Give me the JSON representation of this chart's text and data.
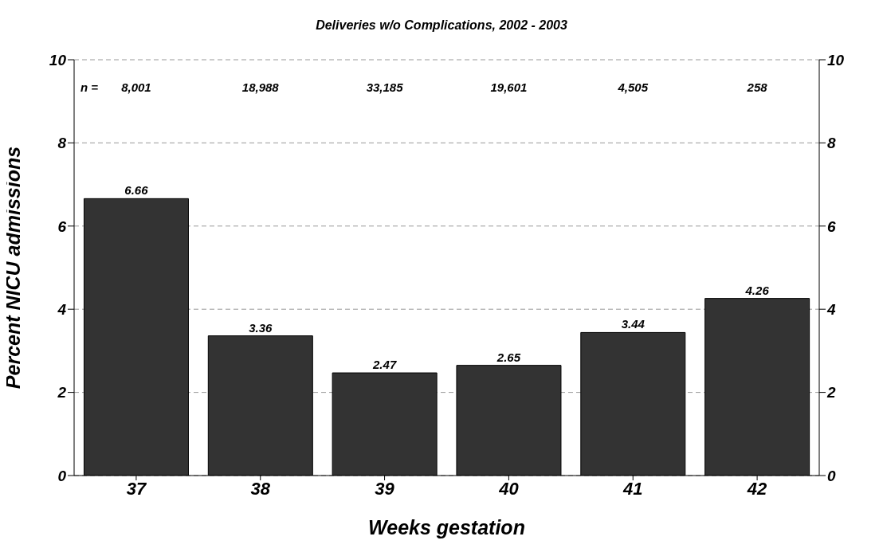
{
  "chart_data": {
    "type": "bar",
    "title": "Deliveries w/o Complications, 2002 - 2003",
    "xlabel": "Weeks gestation",
    "ylabel": "Percent NICU admissions",
    "categories": [
      "37",
      "38",
      "39",
      "40",
      "41",
      "42"
    ],
    "values": [
      6.66,
      3.36,
      2.47,
      2.65,
      3.44,
      4.26
    ],
    "color": "#333333",
    "ylim": [
      0,
      10
    ],
    "yticks": [
      0,
      2,
      4,
      6,
      8,
      10
    ],
    "y2lim": [
      0,
      10
    ],
    "y2ticks": [
      0,
      2,
      4,
      6,
      8,
      10
    ],
    "grid": "y",
    "data_labels": true,
    "annotations": [
      "n =",
      "8,001",
      "18,988",
      "33,185",
      "19,601",
      "4,505",
      "258"
    ]
  }
}
